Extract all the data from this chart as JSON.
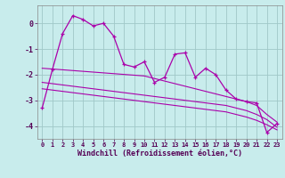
{
  "xlabel": "Windchill (Refroidissement éolien,°C)",
  "background_color": "#c8ecec",
  "grid_color": "#a0c8c8",
  "line_color": "#aa00aa",
  "x_hours": [
    0,
    1,
    2,
    3,
    4,
    5,
    6,
    7,
    8,
    9,
    10,
    11,
    12,
    13,
    14,
    15,
    16,
    17,
    18,
    19,
    20,
    21,
    22,
    23
  ],
  "windchill": [
    -3.3,
    -1.8,
    -0.4,
    0.3,
    0.15,
    -0.1,
    0.0,
    -0.5,
    -1.6,
    -1.7,
    -1.5,
    -2.3,
    -2.1,
    -1.2,
    -1.15,
    -2.1,
    -1.75,
    -2.0,
    -2.6,
    -2.95,
    -3.05,
    -3.1,
    -4.25,
    -3.9
  ],
  "trend1": [
    -1.75,
    -1.78,
    -1.81,
    -1.84,
    -1.87,
    -1.9,
    -1.93,
    -1.96,
    -1.99,
    -2.02,
    -2.05,
    -2.15,
    -2.25,
    -2.35,
    -2.45,
    -2.55,
    -2.65,
    -2.75,
    -2.85,
    -2.95,
    -3.05,
    -3.2,
    -3.55,
    -3.85
  ],
  "trend2": [
    -2.3,
    -2.35,
    -2.4,
    -2.45,
    -2.5,
    -2.55,
    -2.6,
    -2.65,
    -2.7,
    -2.75,
    -2.8,
    -2.85,
    -2.9,
    -2.95,
    -3.0,
    -3.05,
    -3.1,
    -3.15,
    -3.2,
    -3.3,
    -3.4,
    -3.55,
    -3.75,
    -4.05
  ],
  "trend3": [
    -2.55,
    -2.6,
    -2.65,
    -2.7,
    -2.75,
    -2.8,
    -2.85,
    -2.9,
    -2.95,
    -3.0,
    -3.05,
    -3.1,
    -3.15,
    -3.2,
    -3.25,
    -3.3,
    -3.35,
    -3.4,
    -3.45,
    -3.55,
    -3.65,
    -3.78,
    -3.95,
    -4.15
  ],
  "ylim": [
    -4.5,
    0.7
  ],
  "yticks": [
    0,
    -1,
    -2,
    -3,
    -4
  ],
  "xtick_labels": [
    "0",
    "1",
    "2",
    "3",
    "4",
    "5",
    "6",
    "7",
    "8",
    "9",
    "10",
    "11",
    "12",
    "13",
    "14",
    "15",
    "16",
    "17",
    "18",
    "19",
    "20",
    "21",
    "22",
    "23"
  ]
}
